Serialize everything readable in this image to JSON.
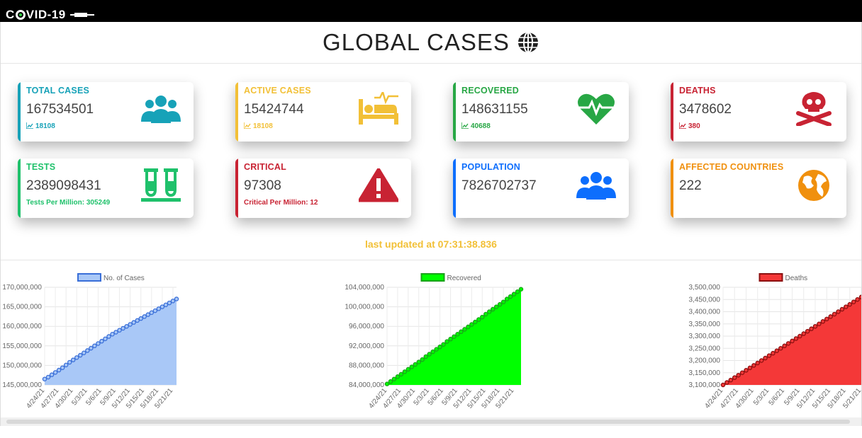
{
  "app": {
    "logo_text_before": "C",
    "logo_text_after": "VID-19"
  },
  "header": {
    "title": "GLOBAL CASES"
  },
  "cards": [
    {
      "label": "TOTAL CASES",
      "value": "167534501",
      "sub": "18108",
      "color": "#17a2b8",
      "icon": "users-icon"
    },
    {
      "label": "ACTIVE CASES",
      "value": "15424744",
      "sub": "18108",
      "color": "#f2c037",
      "icon": "bed-icon"
    },
    {
      "label": "RECOVERED",
      "value": "148631155",
      "sub": "40688",
      "color": "#28a745",
      "icon": "heartbeat-icon"
    },
    {
      "label": "DEATHS",
      "value": "3478602",
      "sub": "380",
      "color": "#c82333",
      "icon": "skull-icon"
    },
    {
      "label": "TESTS",
      "value": "2389098431",
      "sub": "Tests Per Million: 305249",
      "color": "#1fc16b",
      "icon": "test-tubes-icon"
    },
    {
      "label": "CRITICAL",
      "value": "97308",
      "sub": "Critical Per Million: 12",
      "color": "#c82333",
      "icon": "warning-icon"
    },
    {
      "label": "POPULATION",
      "value": "7826702737",
      "sub": "",
      "color": "#0d6efd",
      "icon": "users-icon"
    },
    {
      "label": "AFFECTED COUNTRIES",
      "value": "222",
      "sub": "",
      "color": "#f0900e",
      "icon": "earth-icon"
    }
  ],
  "updated": "last updated at 07:31:38.836",
  "chart_data": [
    {
      "type": "line",
      "series": [
        {
          "name": "No. of Cases",
          "values": [
            146500000,
            147000000,
            147600000,
            148200000,
            148800000,
            149400000,
            150100000,
            150800000,
            151400000,
            152000000,
            152600000,
            153200000,
            153800000,
            154400000,
            155000000,
            155600000,
            156200000,
            156800000,
            157400000,
            158000000,
            158500000,
            159000000,
            159500000,
            160000000,
            160500000,
            161000000,
            161500000,
            162000000,
            162500000,
            163000000,
            163500000,
            164000000,
            164500000,
            165000000,
            165500000,
            166000000,
            166500000,
            167000000
          ]
        }
      ],
      "x_tick_labels": [
        "4/24/21",
        "4/27/21",
        "4/30/21",
        "5/3/21",
        "5/6/21",
        "5/9/21",
        "5/12/21",
        "5/15/21",
        "5/18/21",
        "5/21/21"
      ],
      "y_ticks": [
        "170,000,000",
        "165,000,000",
        "160,000,000",
        "155,000,000",
        "150,000,000",
        "145,000,000"
      ],
      "ylim": [
        145000000,
        170000000
      ],
      "fill": "#a9c8f7",
      "stroke": "#3a6fd8",
      "legend_position": "top"
    },
    {
      "type": "line",
      "series": [
        {
          "name": "Recovered",
          "values": [
            84200000,
            84700000,
            85200000,
            85700000,
            86200000,
            86700000,
            87200000,
            87700000,
            88200000,
            88700000,
            89200000,
            89800000,
            90300000,
            90800000,
            91300000,
            91800000,
            92300000,
            92900000,
            93400000,
            93900000,
            94400000,
            94900000,
            95400000,
            95900000,
            96400000,
            96900000,
            97400000,
            97900000,
            98500000,
            99000000,
            99500000,
            100000000,
            100500000,
            101000000,
            101600000,
            102100000,
            102600000,
            103100000,
            103600000
          ]
        }
      ],
      "x_tick_labels": [
        "4/24/21",
        "4/27/21",
        "4/30/21",
        "5/3/21",
        "5/6/21",
        "5/9/21",
        "5/12/21",
        "5/15/21",
        "5/18/21",
        "5/21/21"
      ],
      "y_ticks": [
        "104,000,000",
        "100,000,000",
        "96,000,000",
        "92,000,000",
        "88,000,000",
        "84,000,000"
      ],
      "ylim": [
        84000000,
        104000000
      ],
      "fill": "#00ff00",
      "stroke": "#1aa31a",
      "legend_position": "top"
    },
    {
      "type": "line",
      "series": [
        {
          "name": "Deaths",
          "values": [
            3100000,
            3110000,
            3120000,
            3130000,
            3140000,
            3150000,
            3160000,
            3170000,
            3180000,
            3190000,
            3200000,
            3210000,
            3220000,
            3230000,
            3240000,
            3250000,
            3260000,
            3270000,
            3280000,
            3290000,
            3300000,
            3310000,
            3320000,
            3330000,
            3340000,
            3350000,
            3360000,
            3370000,
            3380000,
            3390000,
            3400000,
            3410000,
            3420000,
            3430000,
            3440000,
            3450000,
            3460000
          ]
        }
      ],
      "x_tick_labels": [
        "4/24/21",
        "4/27/21",
        "4/30/21",
        "5/3/21",
        "5/6/21",
        "5/9/21",
        "5/12/21",
        "5/15/21",
        "5/18/21",
        "5/21/21"
      ],
      "y_ticks": [
        "3,500,000",
        "3,450,000",
        "3,400,000",
        "3,350,000",
        "3,300,000",
        "3,250,000",
        "3,200,000",
        "3,150,000",
        "3,100,000"
      ],
      "ylim": [
        3100000,
        3500000
      ],
      "fill": "#f43838",
      "stroke": "#8c1010",
      "legend_position": "top"
    }
  ]
}
